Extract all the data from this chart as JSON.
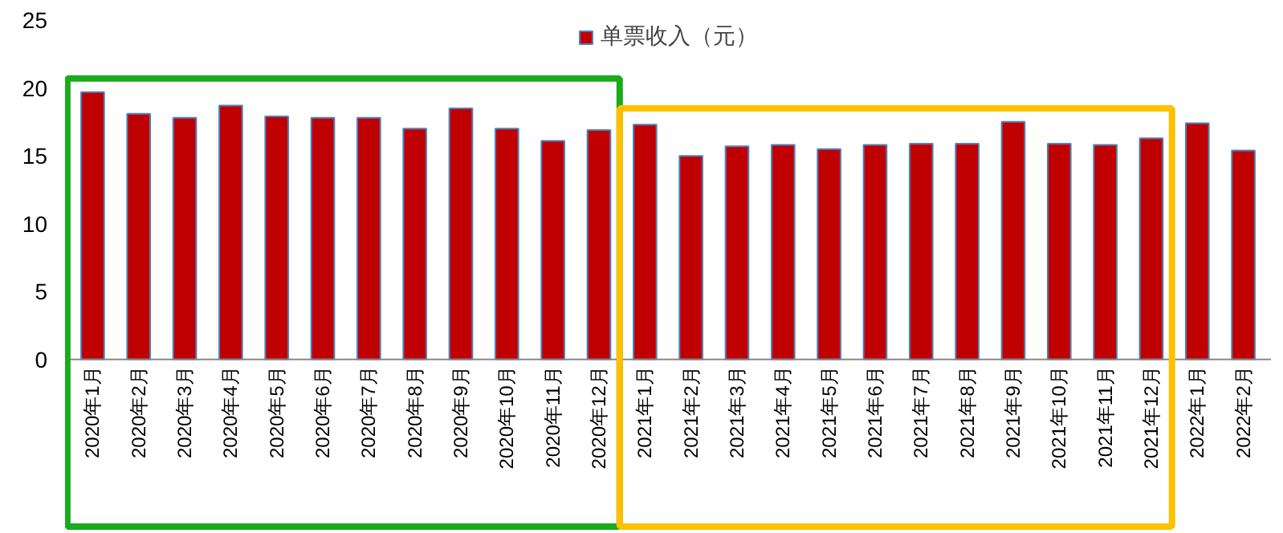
{
  "chart_data": {
    "type": "bar",
    "categories": [
      "2020年1月",
      "2020年2月",
      "2020年3月",
      "2020年4月",
      "2020年5月",
      "2020年6月",
      "2020年7月",
      "2020年8月",
      "2020年9月",
      "2020年10月",
      "2020年11月",
      "2020年12月",
      "2021年1月",
      "2021年2月",
      "2021年3月",
      "2021年4月",
      "2021年5月",
      "2021年6月",
      "2021年7月",
      "2021年8月",
      "2021年9月",
      "2021年10月",
      "2021年11月",
      "2021年12月",
      "2022年1月",
      "2022年2月"
    ],
    "series": [
      {
        "name": "单票收入（元）",
        "color": "#c00000",
        "values": [
          19.7,
          18.1,
          17.8,
          18.7,
          17.9,
          17.8,
          17.8,
          17.0,
          18.5,
          17.0,
          16.1,
          16.9,
          17.3,
          15.0,
          15.7,
          15.8,
          15.5,
          15.8,
          15.9,
          15.9,
          17.5,
          15.9,
          15.8,
          16.3,
          17.4,
          15.4
        ]
      }
    ],
    "ylim": [
      -12.6,
      25
    ],
    "yticks": [
      0,
      5,
      10,
      15,
      20,
      25
    ],
    "grid": false,
    "legend": "top"
  }
}
